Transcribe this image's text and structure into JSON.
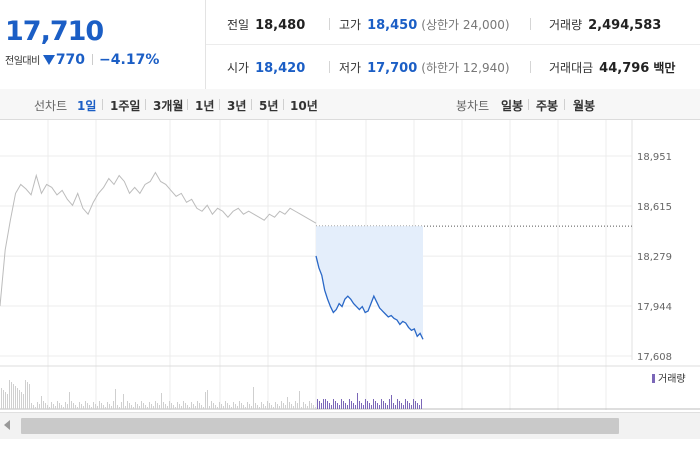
{
  "header": {
    "price": "17,710",
    "change_label": "전일대비",
    "change_amount": "770",
    "change_percent": "−4.17%",
    "stats": {
      "prev_label": "전일",
      "prev_value": "18,480",
      "high_label": "고가",
      "high_value": "18,450",
      "upper_limit": "(상한가 24,000)",
      "volume_label": "거래량",
      "volume_value": "2,494,583",
      "open_label": "시가",
      "open_value": "18,420",
      "low_label": "저가",
      "low_value": "17,700",
      "lower_limit": "(하한가 12,940)",
      "amount_label": "거래대금",
      "amount_value": "44,796",
      "amount_unit": "백만"
    }
  },
  "period_bar": {
    "line_label": "선차트",
    "line_options": [
      "1일",
      "1주일",
      "3개월",
      "1년",
      "3년",
      "5년",
      "10년"
    ],
    "active": "1일",
    "candle_label": "봉차트",
    "candle_options": [
      "일봉",
      "주봉",
      "월봉"
    ]
  },
  "chart_data": {
    "type": "line",
    "y_ticks": [
      "18,951",
      "18,615",
      "18,279",
      "17,944",
      "17,608"
    ],
    "y_tick_values": [
      18951,
      18615,
      18279,
      17944,
      17608
    ],
    "ylim": [
      17608,
      18951
    ],
    "prev_close": 18480,
    "series": [
      {
        "values": [
          17944,
          18320,
          18520,
          18700,
          18760,
          18730,
          18690,
          18820,
          18700,
          18760,
          18740,
          18690,
          18720,
          18660,
          18620,
          18700,
          18600,
          18560,
          18640,
          18700,
          18740,
          18800,
          18760,
          18820,
          18780,
          18700,
          18740,
          18700,
          18760,
          18780,
          18840,
          18780,
          18760,
          18720,
          18680,
          18700,
          18640,
          18660,
          18600,
          18580,
          18620,
          18560,
          18600,
          18580,
          18540,
          18580,
          18600,
          18560,
          18580,
          18560,
          18540,
          18520,
          18560,
          18540,
          18580,
          18560,
          18600,
          18580,
          18560,
          18540,
          18520,
          18500
        ],
        "color": "#bcbcbc"
      },
      {
        "values": [
          18280,
          18200,
          18150,
          18050,
          17990,
          17940,
          17900,
          17920,
          17960,
          17940,
          17990,
          18010,
          17990,
          17960,
          17940,
          17920,
          17940,
          17900,
          17910,
          17960,
          18010,
          17970,
          17930,
          17910,
          17890,
          17870,
          17880,
          17860,
          17850,
          17820,
          17840,
          17830,
          17800,
          17780,
          17790,
          17740,
          17760,
          17720
        ],
        "color": "#2a68c7"
      }
    ],
    "volume_legend": "거래량"
  }
}
